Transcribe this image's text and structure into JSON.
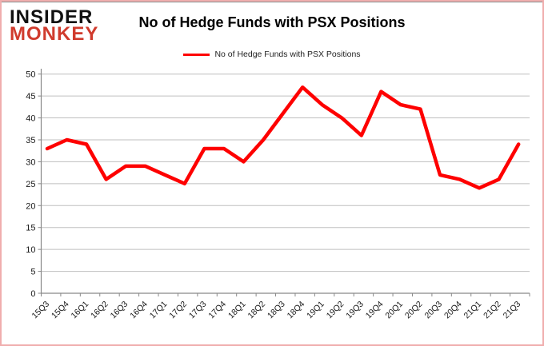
{
  "logo": {
    "line1": "INSIDER",
    "line2": "MONKEY"
  },
  "header": {
    "title": "No of Hedge Funds with PSX Positions"
  },
  "legend": {
    "label": "No of Hedge Funds with PSX Positions"
  },
  "colors": {
    "series_red": "#fe0000",
    "logo_red": "#d03b2d",
    "gridline": "#bfbfbf",
    "axis": "#898989",
    "frame_border": "#f0aeae"
  },
  "chart_data": {
    "type": "line",
    "title": "No of Hedge Funds with PSX Positions",
    "categories": [
      "15Q3",
      "15Q4",
      "16Q1",
      "16Q2",
      "16Q3",
      "16Q4",
      "17Q1",
      "17Q2",
      "17Q3",
      "17Q4",
      "18Q1",
      "18Q2",
      "18Q3",
      "18Q4",
      "19Q1",
      "19Q2",
      "19Q3",
      "19Q4",
      "20Q1",
      "20Q2",
      "20Q3",
      "20Q4",
      "21Q1",
      "21Q2",
      "21Q3"
    ],
    "series": [
      {
        "name": "No of Hedge Funds with PSX Positions",
        "color": "#fe0000",
        "values": [
          33,
          35,
          34,
          26,
          29,
          29,
          27,
          25,
          33,
          33,
          30,
          35,
          41,
          47,
          43,
          40,
          36,
          46,
          43,
          42,
          27,
          26,
          24,
          26,
          34
        ]
      }
    ],
    "ylabel": "",
    "xlabel": "",
    "ylim": [
      0,
      50
    ],
    "ytick_step": 5,
    "grid": true,
    "legend_position": "top-center"
  }
}
